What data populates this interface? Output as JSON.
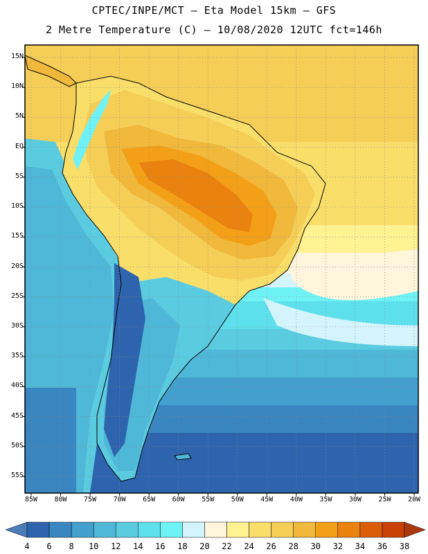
{
  "header": {
    "line1": "CPTEC/INPE/MCT –  Eta Model 15km – GFS",
    "line2": "2 Metre Temperature (C) – 10/08/2020 12UTC fct=146h"
  },
  "map": {
    "lat_labels": [
      "15N",
      "10N",
      "5N",
      "EQ",
      "5S",
      "10S",
      "15S",
      "20S",
      "25S",
      "30S",
      "35S",
      "40S",
      "45S",
      "50S",
      "55S"
    ],
    "lon_labels": [
      "85W",
      "80W",
      "75W",
      "70W",
      "65W",
      "60W",
      "55W",
      "50W",
      "45W",
      "40W",
      "35W",
      "30W",
      "25W",
      "20W"
    ],
    "lat_range": [
      15,
      -55
    ],
    "lon_range": [
      -85,
      -20
    ]
  },
  "colorbar": {
    "ticks": [
      "4",
      "6",
      "8",
      "10",
      "12",
      "14",
      "16",
      "18",
      "20",
      "22",
      "24",
      "26",
      "28",
      "30",
      "32",
      "34",
      "36",
      "38"
    ],
    "colors": [
      "#4a7cb8",
      "#2e64ad",
      "#3a86c1",
      "#43a0cd",
      "#4fb7d8",
      "#5bcbe0",
      "#5ee0ec",
      "#6ff2f6",
      "#d4f4fb",
      "#fff5dc",
      "#fef291",
      "#f9de6a",
      "#f5ce58",
      "#f0b93c",
      "#f3a018",
      "#e9820f",
      "#dc5d08",
      "#c84206",
      "#ad3a0f"
    ]
  }
}
